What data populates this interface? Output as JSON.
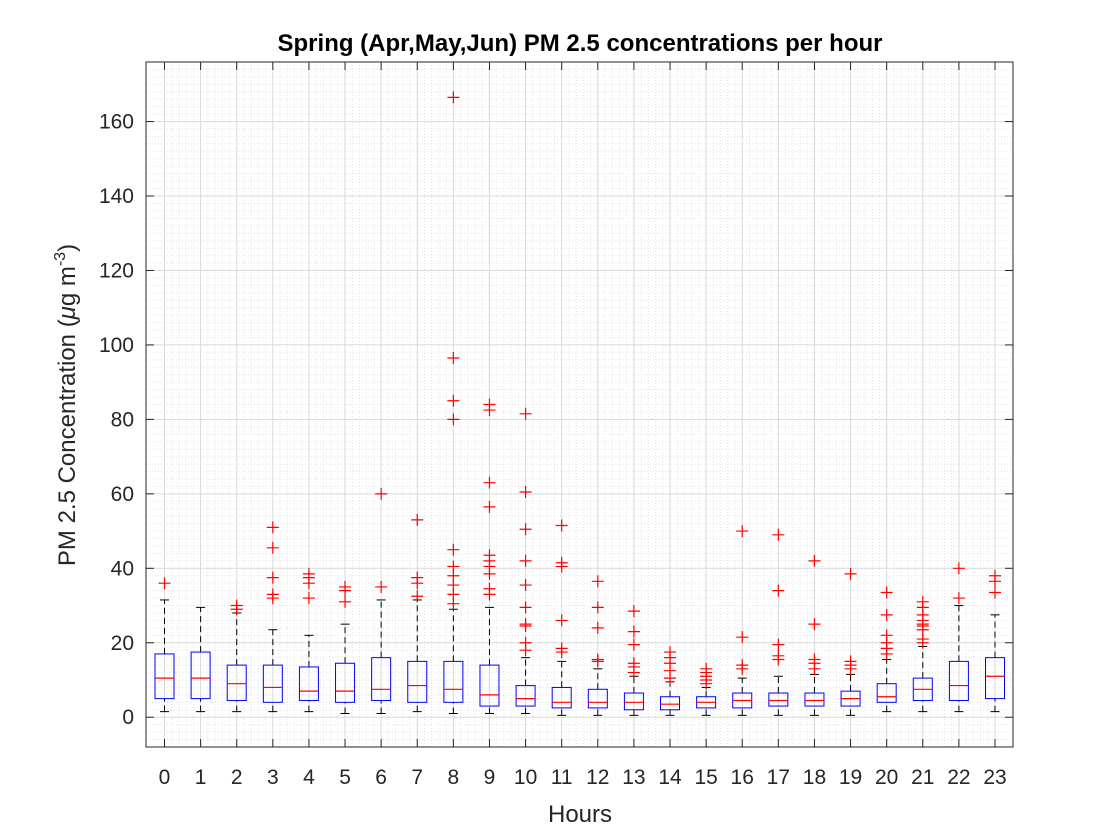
{
  "chart_data": {
    "type": "boxplot",
    "title": "Spring (Apr,May,Jun) PM 2.5 concentrations per hour",
    "xlabel": "Hours",
    "ylabel": "PM 2.5 Concentration (μg m⁻³)",
    "ylabel_parts": {
      "main": "PM 2.5 Concentration (",
      "mu": "μ",
      "unit": "g m",
      "exp": "-3",
      "close": ")"
    },
    "ylim": [
      -8,
      176
    ],
    "yticks": [
      0,
      20,
      40,
      60,
      80,
      100,
      120,
      140,
      160
    ],
    "grid": "major and minor (dotted)",
    "colors": {
      "box": "#0000ff",
      "median": "#ff0000",
      "whisker": "#000000",
      "outlier": "#ff0000",
      "grid": "#d9d9d9",
      "axis": "#262626"
    },
    "categories": [
      "0",
      "1",
      "2",
      "3",
      "4",
      "5",
      "6",
      "7",
      "8",
      "9",
      "10",
      "11",
      "12",
      "13",
      "14",
      "15",
      "16",
      "17",
      "18",
      "19",
      "20",
      "21",
      "22",
      "23"
    ],
    "boxes": [
      {
        "wlo": 1.5,
        "q1": 5,
        "med": 10.5,
        "q3": 17,
        "whi": 31.5,
        "outliers": [
          36
        ]
      },
      {
        "wlo": 1.5,
        "q1": 5,
        "med": 10.5,
        "q3": 17.5,
        "whi": 29.5,
        "outliers": []
      },
      {
        "wlo": 1.5,
        "q1": 4.5,
        "med": 9,
        "q3": 14,
        "whi": 28,
        "outliers": [
          29,
          30
        ]
      },
      {
        "wlo": 1.5,
        "q1": 4,
        "med": 8,
        "q3": 14,
        "whi": 23.5,
        "outliers": [
          32,
          33,
          37.5,
          45.5,
          51
        ]
      },
      {
        "wlo": 1.5,
        "q1": 4.5,
        "med": 7,
        "q3": 13.5,
        "whi": 22,
        "outliers": [
          32,
          36,
          37.5,
          38.5
        ]
      },
      {
        "wlo": 1,
        "q1": 4,
        "med": 7,
        "q3": 14.5,
        "whi": 25,
        "outliers": [
          31,
          34,
          35
        ]
      },
      {
        "wlo": 1,
        "q1": 4.5,
        "med": 7.5,
        "q3": 16,
        "whi": 31.5,
        "outliers": [
          35,
          60
        ]
      },
      {
        "wlo": 1.5,
        "q1": 4,
        "med": 8.5,
        "q3": 15,
        "whi": 31.5,
        "outliers": [
          32.5,
          36,
          37.5,
          53
        ]
      },
      {
        "wlo": 1,
        "q1": 4,
        "med": 7.5,
        "q3": 15,
        "whi": 29,
        "outliers": [
          30.5,
          33,
          35.5,
          38,
          40.5,
          45,
          80,
          85,
          96.5,
          166.5
        ]
      },
      {
        "wlo": 1,
        "q1": 3,
        "med": 6,
        "q3": 14,
        "whi": 29.5,
        "outliers": [
          33,
          34.5,
          38.5,
          40.5,
          42,
          43.5,
          56.5,
          63,
          82.5,
          84
        ]
      },
      {
        "wlo": 1,
        "q1": 3,
        "med": 5,
        "q3": 8.5,
        "whi": 16,
        "outliers": [
          18,
          20,
          24.5,
          25,
          29.5,
          35.5,
          42,
          50.5,
          60.5,
          81.5
        ]
      },
      {
        "wlo": 0.5,
        "q1": 2.5,
        "med": 4,
        "q3": 8,
        "whi": 15,
        "outliers": [
          17.5,
          18.5,
          26,
          40.5,
          41.5,
          51.5
        ]
      },
      {
        "wlo": 0.5,
        "q1": 2.5,
        "med": 4,
        "q3": 7.5,
        "whi": 13,
        "outliers": [
          15,
          15.5,
          24,
          29.5,
          36.5
        ]
      },
      {
        "wlo": 0.5,
        "q1": 2,
        "med": 4,
        "q3": 6.5,
        "whi": 11,
        "outliers": [
          12,
          13.5,
          14.5,
          19.5,
          23,
          28.5
        ]
      },
      {
        "wlo": 0.5,
        "q1": 2,
        "med": 3.5,
        "q3": 5.5,
        "whi": 9.5,
        "outliers": [
          10.5,
          12.5,
          14.5,
          16,
          17.5
        ]
      },
      {
        "wlo": 0.5,
        "q1": 2.5,
        "med": 4,
        "q3": 5.5,
        "whi": 8,
        "outliers": [
          9,
          10,
          11,
          12,
          13
        ]
      },
      {
        "wlo": 0.5,
        "q1": 2.5,
        "med": 4.5,
        "q3": 6.5,
        "whi": 10.5,
        "outliers": [
          13,
          14,
          21.5,
          50
        ]
      },
      {
        "wlo": 0.5,
        "q1": 3,
        "med": 4.5,
        "q3": 6.5,
        "whi": 11,
        "outliers": [
          15.5,
          16.5,
          19.5,
          34,
          49
        ]
      },
      {
        "wlo": 0.5,
        "q1": 3,
        "med": 4.5,
        "q3": 6.5,
        "whi": 11.5,
        "outliers": [
          13,
          14.5,
          15.5,
          25,
          42
        ]
      },
      {
        "wlo": 0.5,
        "q1": 3,
        "med": 5,
        "q3": 7,
        "whi": 11.5,
        "outliers": [
          13,
          14,
          15,
          38.5
        ]
      },
      {
        "wlo": 1.5,
        "q1": 4,
        "med": 5.5,
        "q3": 9,
        "whi": 15.5,
        "outliers": [
          17,
          18.5,
          20,
          22,
          27.5,
          33.5
        ]
      },
      {
        "wlo": 1.5,
        "q1": 4.5,
        "med": 7.5,
        "q3": 10.5,
        "whi": 19,
        "outliers": [
          20,
          21,
          23.5,
          24.5,
          25,
          26,
          27.5,
          29.5,
          31
        ]
      },
      {
        "wlo": 1.5,
        "q1": 4.5,
        "med": 8.5,
        "q3": 15,
        "whi": 30,
        "outliers": [
          32,
          40
        ]
      },
      {
        "wlo": 1.5,
        "q1": 5,
        "med": 11,
        "q3": 16,
        "whi": 27.5,
        "outliers": [
          33.5,
          36.5,
          38
        ]
      }
    ]
  }
}
